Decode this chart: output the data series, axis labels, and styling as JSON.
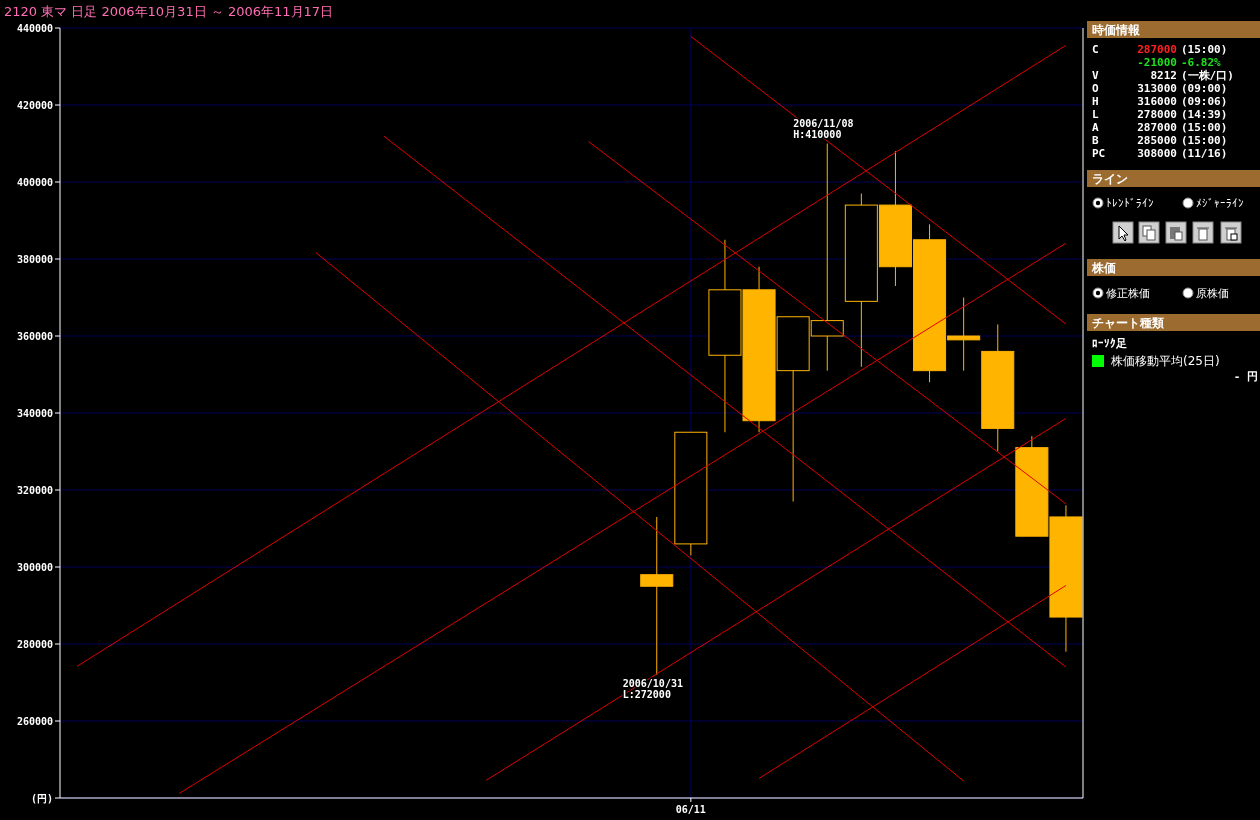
{
  "chart_data": [
    {
      "type": "candlestick",
      "title": "2120 東マ 日足 2006年10月31日 ～ 2006年11月17日",
      "color": "#ffb400",
      "grid": true,
      "categories": [
        null,
        null,
        null,
        null,
        null,
        null,
        null,
        null,
        null,
        null,
        null,
        null,
        null,
        null,
        null,
        null,
        null,
        null,
        "06/11",
        null,
        null,
        null,
        null,
        null,
        null,
        null,
        null,
        null,
        null,
        null
      ],
      "ohlc": [
        null,
        null,
        null,
        null,
        null,
        null,
        null,
        null,
        null,
        null,
        null,
        null,
        null,
        null,
        null,
        null,
        null,
        [
          298000,
          313000,
          272000,
          295000
        ],
        [
          306000,
          335000,
          303000,
          335000
        ],
        [
          355000,
          385000,
          335000,
          372000
        ],
        [
          372000,
          378000,
          335000,
          338000
        ],
        [
          351000,
          365000,
          317000,
          365000
        ],
        [
          360000,
          410000,
          351000,
          364000
        ],
        [
          369000,
          397000,
          352000,
          394000
        ],
        [
          394000,
          408000,
          373000,
          378000
        ],
        [
          385000,
          389000,
          348000,
          351000
        ],
        [
          360000,
          370000,
          351000,
          359000
        ],
        [
          356000,
          363000,
          330000,
          336000
        ],
        [
          331000,
          334000,
          308000,
          308000
        ],
        [
          313000,
          316000,
          278000,
          287000
        ]
      ],
      "series": [
        {
          "type": "line",
          "color": "#e00000",
          "values": [
            null,
            null,
            null,
            null,
            null,
            null,
            null,
            null,
            null,
            null,
            null,
            null,
            null,
            null,
            null,
            null,
            null,
            null,
            437800,
            null,
            null,
            null,
            null,
            null,
            null,
            null,
            null,
            null,
            null,
            363100
          ]
        },
        {
          "type": "line",
          "color": "#e00000",
          "values": [
            null,
            null,
            null,
            null,
            null,
            null,
            null,
            null,
            null,
            411900,
            null,
            null,
            null,
            null,
            null,
            null,
            null,
            null,
            null,
            null,
            null,
            null,
            null,
            null,
            null,
            null,
            null,
            null,
            null,
            274000
          ]
        },
        {
          "type": "line",
          "color": "#e00000",
          "values": [
            null,
            null,
            null,
            null,
            null,
            null,
            null,
            null,
            null,
            null,
            null,
            null,
            null,
            null,
            null,
            410500,
            null,
            null,
            null,
            null,
            null,
            null,
            null,
            null,
            null,
            null,
            null,
            null,
            null,
            316400
          ]
        },
        {
          "type": "line",
          "color": "#e00000",
          "values": [
            null,
            null,
            null,
            null,
            null,
            null,
            null,
            381700,
            null,
            null,
            null,
            null,
            null,
            null,
            null,
            null,
            null,
            null,
            null,
            null,
            null,
            null,
            null,
            null,
            null,
            null,
            244400,
            null,
            null,
            null
          ]
        },
        {
          "type": "line",
          "color": "#e00000",
          "values": [
            274200,
            null,
            null,
            null,
            null,
            null,
            null,
            null,
            null,
            null,
            null,
            null,
            null,
            null,
            null,
            null,
            null,
            null,
            null,
            null,
            null,
            null,
            null,
            null,
            null,
            null,
            null,
            null,
            null,
            435500
          ]
        },
        {
          "type": "line",
          "color": "#e00000",
          "values": [
            null,
            null,
            null,
            241200,
            null,
            null,
            null,
            null,
            null,
            null,
            null,
            null,
            null,
            null,
            null,
            null,
            null,
            null,
            null,
            null,
            null,
            null,
            null,
            null,
            null,
            null,
            null,
            null,
            null,
            384100
          ]
        },
        {
          "type": "line",
          "color": "#e00000",
          "values": [
            null,
            null,
            null,
            null,
            null,
            null,
            null,
            null,
            null,
            null,
            null,
            null,
            244600,
            null,
            null,
            null,
            null,
            null,
            null,
            null,
            null,
            null,
            null,
            null,
            null,
            null,
            null,
            null,
            null,
            338600
          ]
        },
        {
          "type": "line",
          "color": "#e00000",
          "values": [
            null,
            null,
            null,
            null,
            null,
            null,
            null,
            null,
            null,
            null,
            null,
            null,
            null,
            null,
            null,
            null,
            null,
            null,
            null,
            null,
            245100,
            null,
            null,
            null,
            null,
            null,
            null,
            null,
            null,
            295200
          ]
        }
      ],
      "ylim": [
        240000,
        440000
      ],
      "yticks": [
        {
          "value": 240000,
          "label": "(円)"
        },
        260000,
        280000,
        300000,
        320000,
        340000,
        360000,
        380000,
        400000,
        420000,
        440000
      ],
      "annotations": [
        {
          "text": "2006/11/08\nH:410000",
          "y": 410000
        },
        {
          "text": "2006/10/31\nL:272000",
          "y": 272000
        }
      ]
    },
    {
      "type": "other",
      "annotations": [
        "時価情報",
        "C",
        "287000",
        "(15:00)",
        "-21000",
        "-6.82%",
        "V",
        "8212",
        "(一株/口)",
        "O",
        "313000",
        "(09:00)",
        "H",
        "316000",
        "(09:06)",
        "L",
        "278000",
        "(14:39)",
        "A",
        "287000",
        "(15:00)",
        "B",
        "285000",
        "(15:00)",
        "PC",
        "308000",
        "(11/16)",
        "ライン",
        "ﾄﾚﾝﾄﾞﾗｲﾝ",
        "ﾒｼﾞｬｰﾗｲﾝ",
        "株価",
        "修正株価",
        "原株価",
        "チャート種類",
        "ﾛｰｿｸ足",
        "株価移動平均(25日)",
        "- 円"
      ]
    }
  ]
}
